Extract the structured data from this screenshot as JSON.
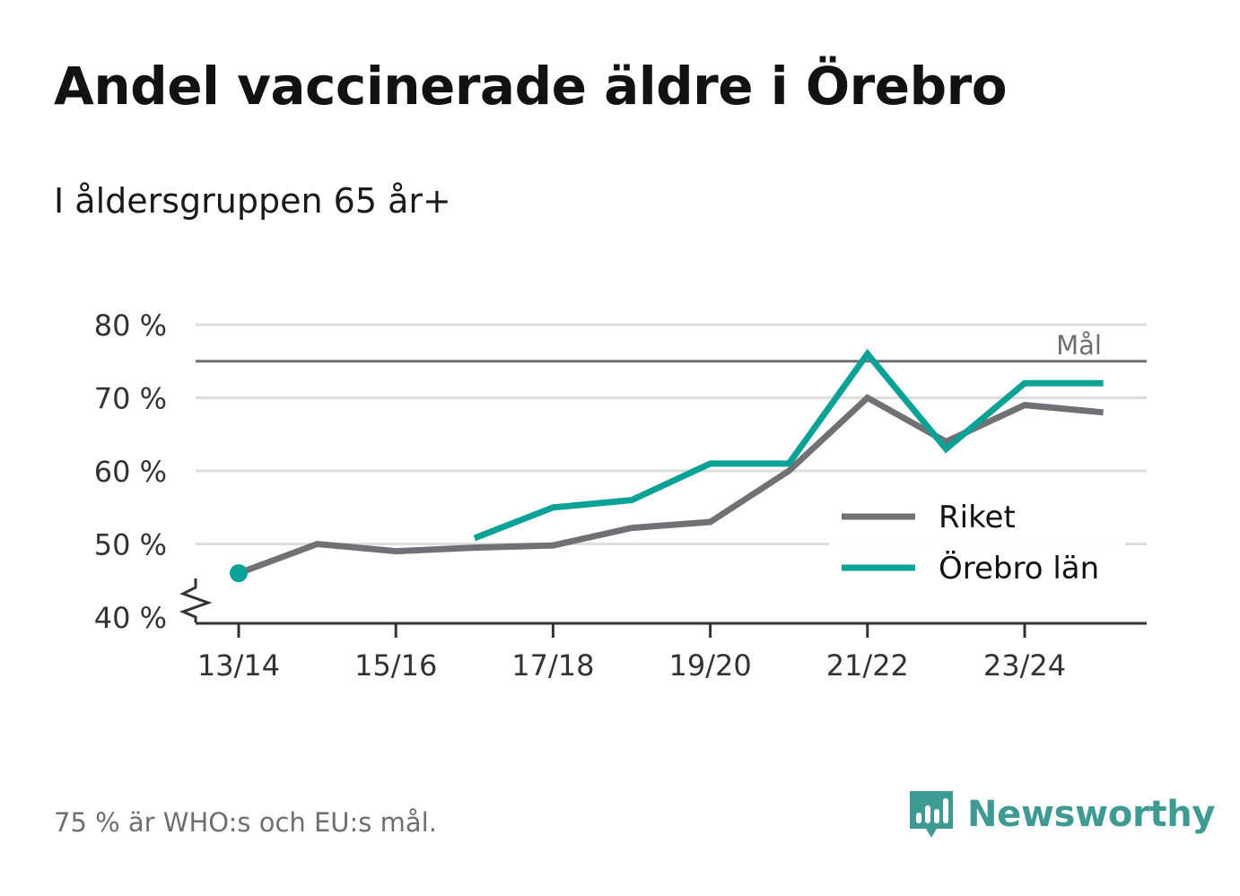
{
  "title": "Andel vaccinerade äldre i Örebro",
  "subtitle": "I åldersgruppen 65 år+",
  "footnote": "75 % är WHO:s och EU:s mål.",
  "brand": {
    "name": "Newsworthy",
    "icon": "newsworthy-logo-icon"
  },
  "colors": {
    "riket": "#717075",
    "orebro": "#0aa196",
    "grid": "#dedede",
    "axis": "#333333",
    "target": "#6f6f72"
  },
  "chart_data": {
    "type": "line",
    "title": "Andel vaccinerade äldre i Örebro",
    "subtitle": "I åldersgruppen 65 år+",
    "xlabel": "",
    "ylabel": "",
    "x": [
      "13/14",
      "14/15",
      "15/16",
      "16/17",
      "17/18",
      "18/19",
      "19/20",
      "20/21",
      "21/22",
      "22/23",
      "23/24",
      "24/25"
    ],
    "x_tick_labels": [
      "13/14",
      "15/16",
      "17/18",
      "19/20",
      "21/22",
      "23/24"
    ],
    "y_ticks": [
      40,
      50,
      60,
      70,
      80
    ],
    "y_tick_labels": [
      "40 %",
      "50 %",
      "60 %",
      "70 %",
      "80 %"
    ],
    "ylim": [
      40,
      80
    ],
    "grid": true,
    "legend_position": "bottom-right",
    "target": {
      "value": 75,
      "label": "Mål"
    },
    "series": [
      {
        "name": "Riket",
        "color": "#717075",
        "values": [
          46,
          50,
          49,
          49.5,
          49.8,
          52.2,
          53,
          60,
          70,
          64,
          69,
          68
        ]
      },
      {
        "name": "Örebro län",
        "color": "#0aa196",
        "values": [
          46,
          null,
          null,
          50.8,
          55,
          56,
          61,
          61,
          76,
          63,
          72,
          72
        ]
      }
    ]
  }
}
